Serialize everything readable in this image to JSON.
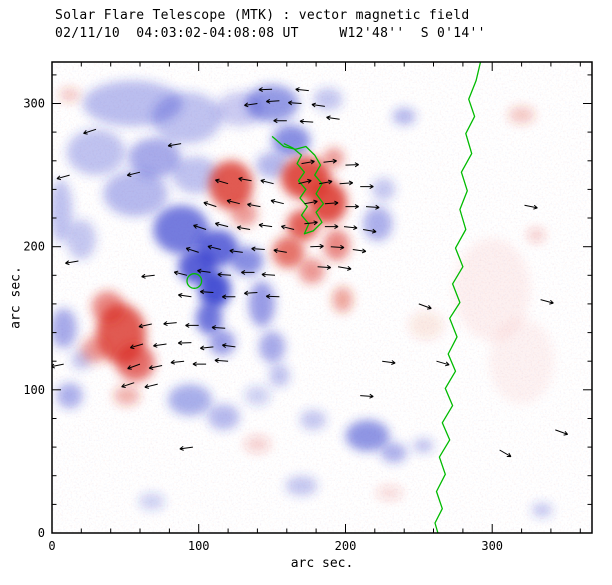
{
  "chart_data": {
    "type": "heatmap",
    "title": "Solar Flare Telescope (MTK) : vector magnetic field",
    "subtitle": "02/11/10  04:03:02-04:08:08 UT     W12'48''  S 0'14''",
    "xlabel": "arc sec.",
    "ylabel": "arc sec.",
    "xlim": [
      0,
      368
    ],
    "ylim": [
      0,
      329
    ],
    "xticks": [
      0,
      100,
      200,
      300
    ],
    "yticks": [
      0,
      100,
      200,
      300
    ],
    "minor_tick_step": 20,
    "grid": false,
    "colors": {
      "positive": "#d92b20",
      "negative": "#2a35cc",
      "contour": "#00bb00",
      "vector": "#000000",
      "frame": "#000000"
    },
    "blobs": {
      "negative": [
        [
          55,
          300,
          34,
          16,
          0.32
        ],
        [
          92,
          290,
          24,
          18,
          0.3
        ],
        [
          128,
          296,
          16,
          12,
          0.25
        ],
        [
          150,
          300,
          18,
          13,
          0.5
        ],
        [
          163,
          274,
          13,
          11,
          0.55
        ],
        [
          150,
          257,
          11,
          9,
          0.35
        ],
        [
          188,
          303,
          10,
          8,
          0.28
        ],
        [
          240,
          291,
          8,
          6,
          0.35
        ],
        [
          30,
          266,
          20,
          16,
          0.3
        ],
        [
          70,
          262,
          18,
          14,
          0.42
        ],
        [
          57,
          237,
          22,
          16,
          0.34
        ],
        [
          98,
          250,
          16,
          13,
          0.3
        ],
        [
          6,
          225,
          8,
          22,
          0.3
        ],
        [
          20,
          205,
          10,
          14,
          0.28
        ],
        [
          88,
          212,
          19,
          17,
          0.65
        ],
        [
          113,
          199,
          14,
          13,
          0.72
        ],
        [
          133,
          190,
          11,
          10,
          0.55
        ],
        [
          99,
          186,
          13,
          12,
          0.78
        ],
        [
          111,
          170,
          11,
          13,
          0.85
        ],
        [
          107,
          150,
          9,
          11,
          0.68
        ],
        [
          116,
          133,
          9,
          9,
          0.48
        ],
        [
          143,
          160,
          9,
          16,
          0.48
        ],
        [
          150,
          130,
          9,
          11,
          0.42
        ],
        [
          155,
          110,
          7,
          8,
          0.3
        ],
        [
          222,
          216,
          10,
          12,
          0.38
        ],
        [
          226,
          240,
          8,
          8,
          0.28
        ],
        [
          8,
          143,
          9,
          14,
          0.42
        ],
        [
          20,
          121,
          7,
          7,
          0.28
        ],
        [
          12,
          96,
          9,
          9,
          0.38
        ],
        [
          94,
          93,
          15,
          11,
          0.4
        ],
        [
          117,
          81,
          11,
          9,
          0.34
        ],
        [
          140,
          96,
          9,
          7,
          0.22
        ],
        [
          178,
          79,
          9,
          7,
          0.28
        ],
        [
          215,
          68,
          15,
          11,
          0.52
        ],
        [
          233,
          56,
          9,
          7,
          0.38
        ],
        [
          253,
          61,
          7,
          5,
          0.3
        ],
        [
          170,
          33,
          11,
          7,
          0.28
        ],
        [
          68,
          22,
          9,
          6,
          0.22
        ],
        [
          334,
          16,
          7,
          5,
          0.28
        ]
      ],
      "positive": [
        [
          122,
          243,
          15,
          17,
          0.78
        ],
        [
          131,
          223,
          9,
          9,
          0.45
        ],
        [
          173,
          248,
          17,
          15,
          0.82
        ],
        [
          188,
          231,
          13,
          15,
          0.82
        ],
        [
          171,
          215,
          11,
          11,
          0.75
        ],
        [
          161,
          196,
          11,
          11,
          0.65
        ],
        [
          177,
          183,
          9,
          9,
          0.48
        ],
        [
          194,
          201,
          9,
          11,
          0.55
        ],
        [
          198,
          163,
          7,
          9,
          0.42
        ],
        [
          192,
          262,
          7,
          7,
          0.48
        ],
        [
          47,
          139,
          17,
          21,
          0.78
        ],
        [
          57,
          119,
          13,
          13,
          0.68
        ],
        [
          38,
          158,
          11,
          11,
          0.55
        ],
        [
          29,
          128,
          9,
          9,
          0.45
        ],
        [
          51,
          96,
          9,
          7,
          0.35
        ],
        [
          140,
          62,
          9,
          6,
          0.2
        ],
        [
          230,
          28,
          9,
          5,
          0.16
        ],
        [
          320,
          292,
          9,
          6,
          0.26
        ],
        [
          12,
          306,
          7,
          5,
          0.26
        ],
        [
          330,
          208,
          6,
          5,
          0.22
        ],
        [
          300,
          170,
          26,
          36,
          0.06
        ],
        [
          320,
          120,
          22,
          30,
          0.05
        ],
        [
          255,
          145,
          12,
          10,
          0.1
        ]
      ]
    },
    "contours": {
      "neutral_line": [
        [
          292,
          329
        ],
        [
          289,
          316
        ],
        [
          284,
          303
        ],
        [
          288,
          291
        ],
        [
          282,
          279
        ],
        [
          286,
          265
        ],
        [
          279,
          252
        ],
        [
          283,
          239
        ],
        [
          278,
          226
        ],
        [
          282,
          212
        ],
        [
          275,
          199
        ],
        [
          280,
          186
        ],
        [
          273,
          174
        ],
        [
          278,
          161
        ],
        [
          271,
          150
        ],
        [
          276,
          137
        ],
        [
          270,
          125
        ],
        [
          275,
          113
        ],
        [
          268,
          101
        ],
        [
          273,
          89
        ],
        [
          266,
          77
        ],
        [
          271,
          65
        ],
        [
          264,
          53
        ],
        [
          268,
          41
        ],
        [
          262,
          29
        ],
        [
          266,
          17
        ],
        [
          261,
          7
        ],
        [
          263,
          0
        ]
      ],
      "loop": [
        [
          150,
          277
        ],
        [
          158,
          270
        ],
        [
          166,
          268
        ],
        [
          173,
          270
        ],
        [
          179,
          264
        ],
        [
          183,
          257
        ],
        [
          179,
          250
        ],
        [
          184,
          244
        ],
        [
          180,
          237
        ],
        [
          185,
          230
        ],
        [
          180,
          224
        ],
        [
          184,
          217
        ],
        [
          178,
          211
        ],
        [
          172,
          209
        ],
        [
          175,
          216
        ],
        [
          170,
          222
        ],
        [
          174,
          228
        ],
        [
          169,
          234
        ],
        [
          173,
          240
        ],
        [
          168,
          246
        ],
        [
          172,
          252
        ],
        [
          167,
          258
        ],
        [
          170,
          264
        ],
        [
          164,
          269
        ],
        [
          158,
          272
        ]
      ],
      "circle": [
        97,
        176,
        5
      ]
    },
    "arrows": [
      [
        60,
        118,
        200
      ],
      [
        75,
        117,
        192
      ],
      [
        90,
        120,
        186
      ],
      [
        105,
        118,
        180
      ],
      [
        120,
        120,
        176
      ],
      [
        62,
        132,
        196
      ],
      [
        78,
        132,
        188
      ],
      [
        95,
        133,
        182
      ],
      [
        110,
        130,
        186
      ],
      [
        125,
        130,
        172
      ],
      [
        68,
        146,
        192
      ],
      [
        85,
        147,
        186
      ],
      [
        100,
        145,
        180
      ],
      [
        118,
        143,
        176
      ],
      [
        56,
        105,
        198
      ],
      [
        72,
        104,
        194
      ],
      [
        95,
        165,
        172
      ],
      [
        110,
        168,
        176
      ],
      [
        125,
        165,
        180
      ],
      [
        140,
        168,
        184
      ],
      [
        155,
        165,
        178
      ],
      [
        92,
        180,
        166
      ],
      [
        108,
        182,
        172
      ],
      [
        122,
        180,
        176
      ],
      [
        138,
        182,
        180
      ],
      [
        152,
        180,
        176
      ],
      [
        100,
        196,
        162
      ],
      [
        115,
        198,
        166
      ],
      [
        130,
        196,
        172
      ],
      [
        145,
        198,
        176
      ],
      [
        160,
        196,
        170
      ],
      [
        105,
        212,
        162
      ],
      [
        120,
        214,
        166
      ],
      [
        135,
        212,
        170
      ],
      [
        150,
        214,
        172
      ],
      [
        165,
        212,
        166
      ],
      [
        112,
        228,
        162
      ],
      [
        128,
        230,
        166
      ],
      [
        142,
        228,
        170
      ],
      [
        158,
        230,
        166
      ],
      [
        120,
        244,
        164
      ],
      [
        136,
        246,
        170
      ],
      [
        151,
        244,
        166
      ],
      [
        170,
        258,
        10
      ],
      [
        185,
        259,
        6
      ],
      [
        200,
        257,
        2
      ],
      [
        168,
        244,
        14
      ],
      [
        182,
        244,
        10
      ],
      [
        196,
        244,
        4
      ],
      [
        210,
        242,
        0
      ],
      [
        172,
        230,
        10
      ],
      [
        186,
        230,
        4
      ],
      [
        200,
        228,
        0
      ],
      [
        214,
        228,
        356
      ],
      [
        172,
        216,
        6
      ],
      [
        186,
        214,
        0
      ],
      [
        199,
        214,
        354
      ],
      [
        212,
        212,
        350
      ],
      [
        176,
        200,
        2
      ],
      [
        190,
        200,
        356
      ],
      [
        205,
        198,
        352
      ],
      [
        181,
        186,
        356
      ],
      [
        195,
        186,
        350
      ],
      [
        140,
        300,
        188
      ],
      [
        155,
        302,
        184
      ],
      [
        170,
        300,
        176
      ],
      [
        186,
        298,
        172
      ],
      [
        160,
        288,
        180
      ],
      [
        178,
        287,
        176
      ],
      [
        196,
        289,
        172
      ],
      [
        150,
        310,
        182
      ],
      [
        175,
        309,
        174
      ],
      [
        30,
        282,
        198
      ],
      [
        88,
        272,
        190
      ],
      [
        60,
        252,
        194
      ],
      [
        18,
        190,
        190
      ],
      [
        70,
        180,
        186
      ],
      [
        12,
        250,
        196
      ],
      [
        250,
        160,
        340
      ],
      [
        262,
        120,
        344
      ],
      [
        322,
        229,
        348
      ],
      [
        333,
        163,
        345
      ],
      [
        343,
        72,
        340
      ],
      [
        305,
        58,
        330
      ],
      [
        225,
        120,
        352
      ],
      [
        210,
        96,
        356
      ],
      [
        96,
        60,
        188
      ],
      [
        8,
        118,
        192
      ]
    ]
  }
}
